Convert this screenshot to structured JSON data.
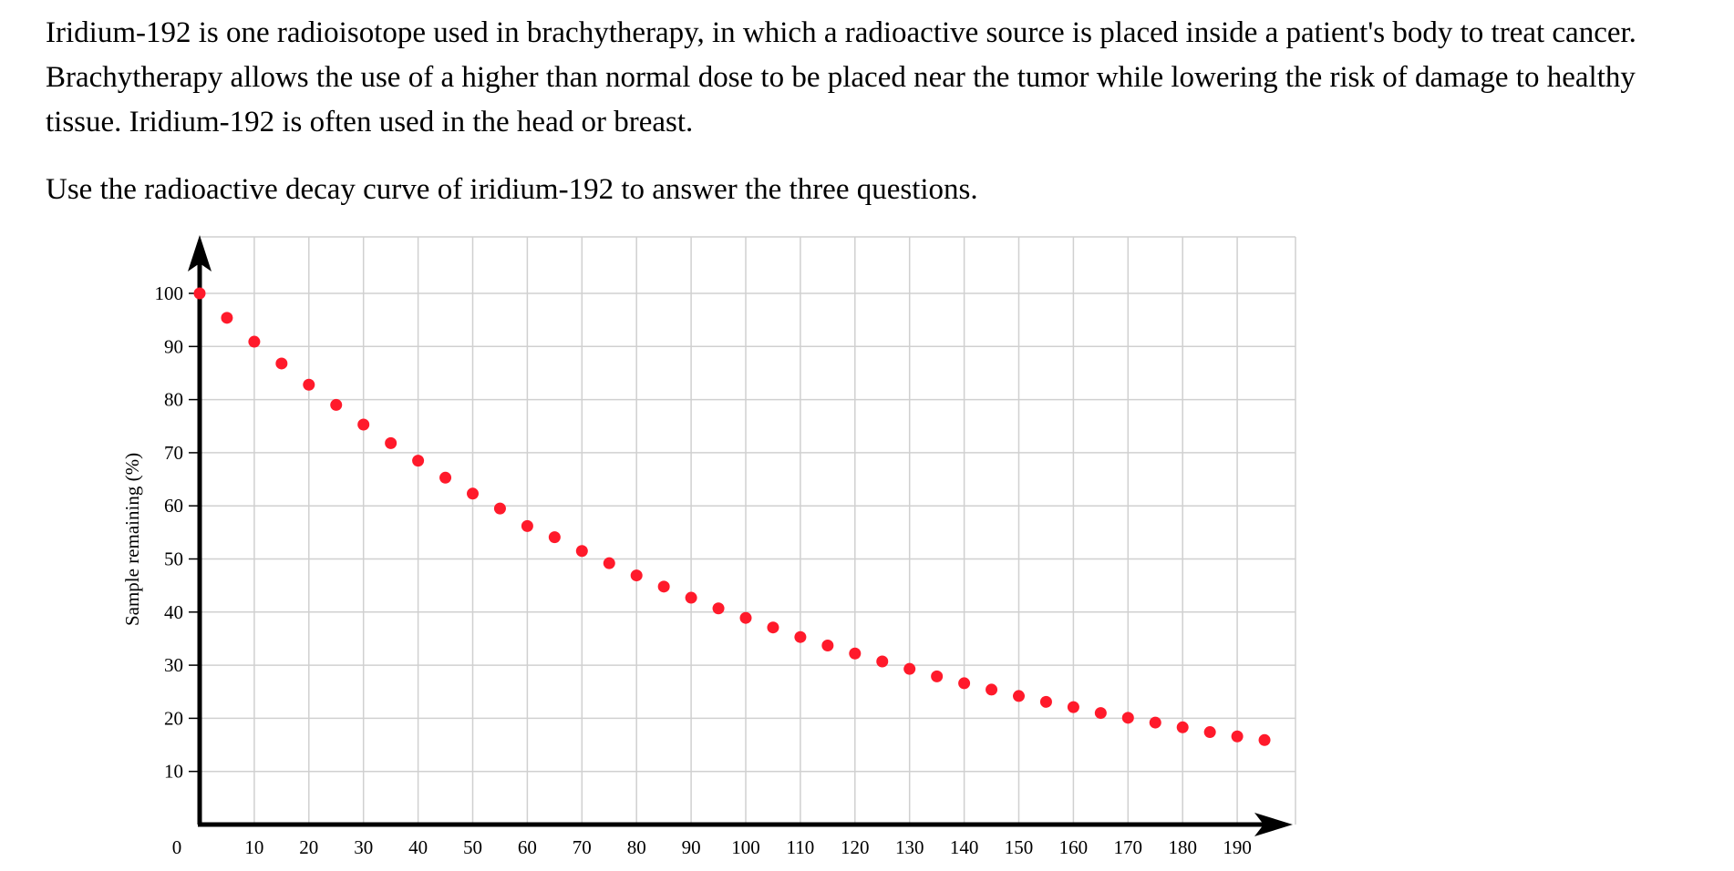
{
  "passage": {
    "paragraph": "Iridium-192 is one radioisotope used in brachytherapy, in which a radioactive source is placed inside a patient's body to treat cancer. Brachytherapy allows the use of a higher than normal dose to be placed near the tumor while lowering the risk of damage to healthy tissue. Iridium-192 is often used in the head or breast.",
    "instruction": "Use the radioactive decay curve of iridium-192 to answer the three questions."
  },
  "chart_data": {
    "type": "scatter",
    "title": "",
    "xlabel": "",
    "ylabel": "Sample remaining (%)",
    "xlim": [
      0,
      200
    ],
    "ylim": [
      0,
      110
    ],
    "x_ticks": [
      0,
      10,
      20,
      30,
      40,
      50,
      60,
      70,
      80,
      90,
      100,
      110,
      120,
      130,
      140,
      150,
      160,
      170,
      180,
      190
    ],
    "y_ticks": [
      10,
      20,
      30,
      40,
      50,
      60,
      70,
      80,
      90,
      100
    ],
    "grid": true,
    "marker_color": "#ff1a2b",
    "series": [
      {
        "x": [
          0,
          5,
          10,
          15,
          20,
          25,
          30,
          35,
          40,
          45,
          50,
          55,
          60,
          65,
          70,
          75,
          80,
          85,
          90,
          95,
          100,
          105,
          110,
          115,
          120,
          125,
          130,
          135,
          140,
          145,
          150,
          155,
          160,
          165,
          170,
          175,
          180,
          185,
          190,
          195
        ],
        "y": [
          100,
          95.4,
          90.9,
          86.8,
          82.8,
          79.0,
          75.3,
          71.8,
          68.5,
          65.3,
          62.3,
          59.5,
          56.2,
          54.1,
          51.5,
          49.2,
          46.9,
          44.8,
          42.7,
          40.7,
          38.9,
          37.1,
          35.3,
          33.7,
          32.2,
          30.7,
          29.3,
          27.9,
          26.6,
          25.4,
          24.2,
          23.1,
          22.1,
          21.0,
          20.1,
          19.2,
          18.3,
          17.4,
          16.6,
          15.9
        ]
      }
    ]
  }
}
